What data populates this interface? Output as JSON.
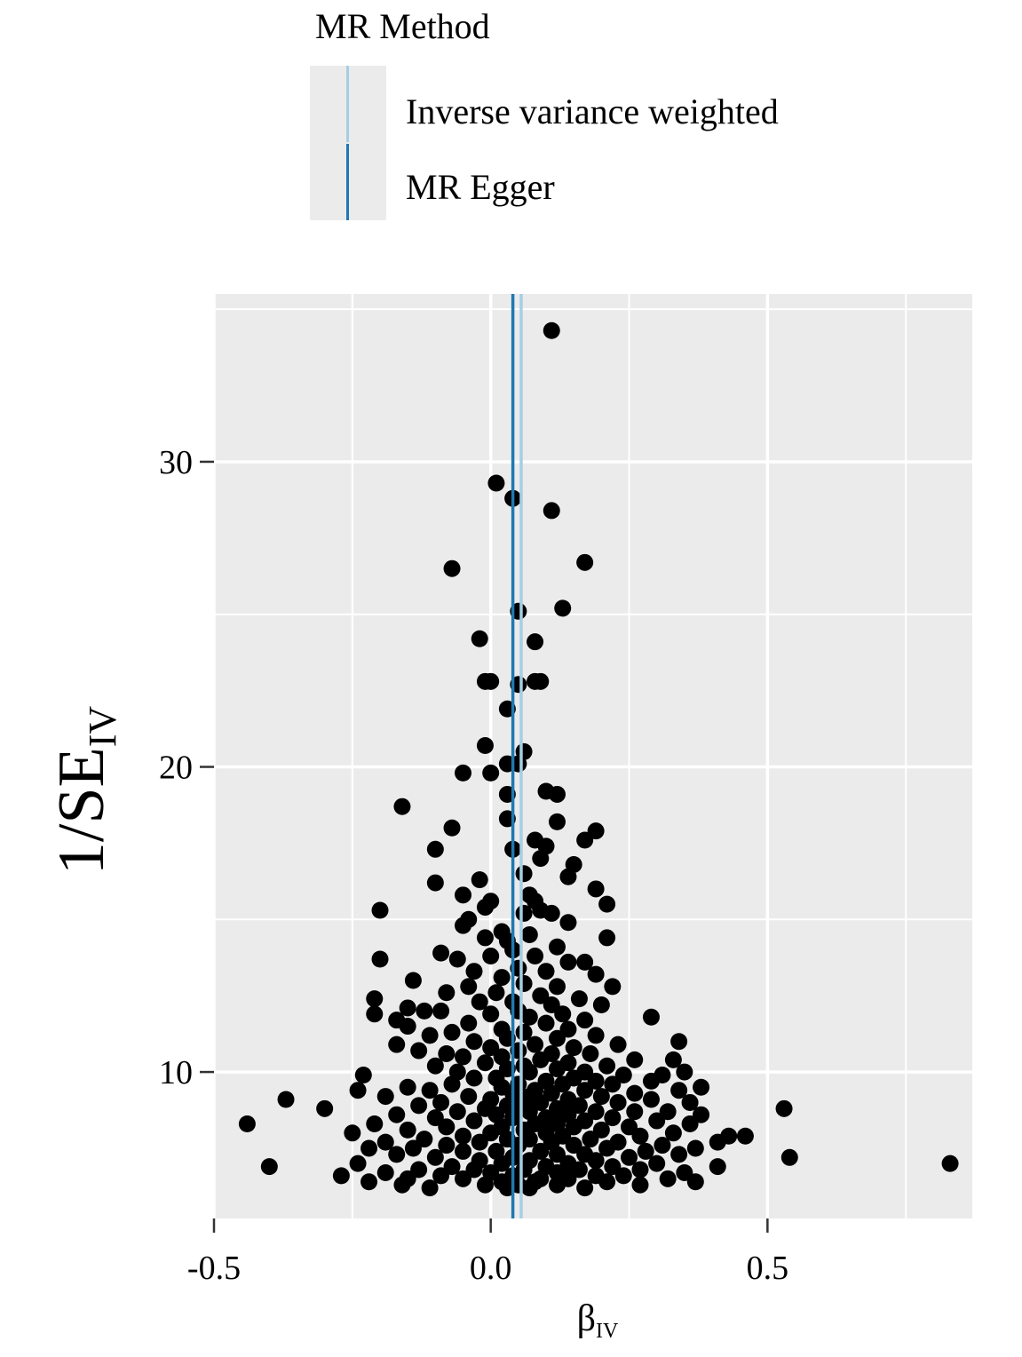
{
  "legend": {
    "title": "MR Method",
    "items": [
      {
        "label": "Inverse variance weighted",
        "color": "#a6cee3"
      },
      {
        "label": "MR Egger",
        "color": "#1f78b4"
      }
    ]
  },
  "chart_data": {
    "type": "scatter",
    "title": "",
    "xlabel": "β",
    "xlabel_sub": "IV",
    "ylabel": "1/SE",
    "ylabel_sub": "IV",
    "xlim": [
      -0.5,
      0.87
    ],
    "ylim": [
      5.2,
      35.5
    ],
    "x_ticks": [
      -0.5,
      0.0,
      0.5
    ],
    "x_tick_labels": [
      "-0.5",
      "0.0",
      "0.5"
    ],
    "y_ticks": [
      10,
      20,
      30
    ],
    "y_tick_labels": [
      "10",
      "20",
      "30"
    ],
    "grid": true,
    "panel_background": "#ebebeb",
    "legend_position": "top",
    "vlines": [
      {
        "method": "Inverse variance weighted",
        "x": 0.055,
        "color": "#a6cee3"
      },
      {
        "method": "MR Egger",
        "x": 0.04,
        "color": "#1f78b4"
      }
    ],
    "points": [
      [
        0.11,
        34.3
      ],
      [
        0.01,
        29.3
      ],
      [
        0.04,
        28.8
      ],
      [
        0.11,
        28.4
      ],
      [
        -0.07,
        26.5
      ],
      [
        0.17,
        26.7
      ],
      [
        0.05,
        25.1
      ],
      [
        0.13,
        25.2
      ],
      [
        -0.02,
        24.2
      ],
      [
        0.08,
        24.1
      ],
      [
        -0.01,
        22.8
      ],
      [
        0.0,
        22.8
      ],
      [
        0.08,
        22.8
      ],
      [
        0.09,
        22.8
      ],
      [
        0.05,
        22.7
      ],
      [
        0.03,
        21.9
      ],
      [
        -0.01,
        20.7
      ],
      [
        0.06,
        20.5
      ],
      [
        0.03,
        20.1
      ],
      [
        0.05,
        20.1
      ],
      [
        -0.05,
        19.8
      ],
      [
        0.0,
        19.8
      ],
      [
        0.1,
        19.2
      ],
      [
        0.12,
        19.1
      ],
      [
        0.03,
        19.1
      ],
      [
        -0.16,
        18.7
      ],
      [
        0.03,
        18.3
      ],
      [
        0.12,
        18.2
      ],
      [
        -0.07,
        18.0
      ],
      [
        0.19,
        17.9
      ],
      [
        0.17,
        17.6
      ],
      [
        0.08,
        17.6
      ],
      [
        0.1,
        17.4
      ],
      [
        0.04,
        17.3
      ],
      [
        -0.1,
        17.3
      ],
      [
        0.09,
        17.0
      ],
      [
        0.15,
        16.8
      ],
      [
        0.06,
        16.5
      ],
      [
        0.14,
        16.4
      ],
      [
        -0.02,
        16.3
      ],
      [
        -0.1,
        16.2
      ],
      [
        0.19,
        16.0
      ],
      [
        0.07,
        15.8
      ],
      [
        -0.05,
        15.8
      ],
      [
        0.08,
        15.6
      ],
      [
        0.0,
        15.6
      ],
      [
        0.21,
        15.5
      ],
      [
        -0.01,
        15.4
      ],
      [
        0.09,
        15.3
      ],
      [
        -0.2,
        15.3
      ],
      [
        0.06,
        15.2
      ],
      [
        0.11,
        15.2
      ],
      [
        -0.04,
        15.0
      ],
      [
        0.14,
        14.9
      ],
      [
        -0.05,
        14.8
      ],
      [
        0.02,
        14.6
      ],
      [
        0.07,
        14.5
      ],
      [
        -0.01,
        14.4
      ],
      [
        0.21,
        14.4
      ],
      [
        0.03,
        14.3
      ],
      [
        0.12,
        14.1
      ],
      [
        0.04,
        14.0
      ],
      [
        -0.09,
        13.9
      ],
      [
        0.08,
        13.8
      ],
      [
        0.0,
        13.8
      ],
      [
        -0.06,
        13.7
      ],
      [
        -0.2,
        13.7
      ],
      [
        0.14,
        13.6
      ],
      [
        0.17,
        13.6
      ],
      [
        0.05,
        13.4
      ],
      [
        -0.03,
        13.3
      ],
      [
        0.1,
        13.3
      ],
      [
        0.19,
        13.2
      ],
      [
        0.02,
        13.1
      ],
      [
        -0.14,
        13.0
      ],
      [
        0.06,
        12.9
      ],
      [
        -0.04,
        12.8
      ],
      [
        0.12,
        12.8
      ],
      [
        0.22,
        12.8
      ],
      [
        0.01,
        12.6
      ],
      [
        -0.08,
        12.6
      ],
      [
        0.09,
        12.5
      ],
      [
        -0.21,
        12.4
      ],
      [
        0.16,
        12.4
      ],
      [
        0.04,
        12.3
      ],
      [
        -0.02,
        12.3
      ],
      [
        0.11,
        12.2
      ],
      [
        0.2,
        12.2
      ],
      [
        -0.15,
        12.1
      ],
      [
        -0.12,
        12.0
      ],
      [
        0.05,
        12.0
      ],
      [
        -0.09,
        12.0
      ],
      [
        0.13,
        11.9
      ],
      [
        -0.21,
        11.9
      ],
      [
        0.0,
        11.9
      ],
      [
        0.07,
        11.8
      ],
      [
        0.29,
        11.8
      ],
      [
        -0.17,
        11.7
      ],
      [
        0.17,
        11.7
      ],
      [
        -0.04,
        11.6
      ],
      [
        0.1,
        11.6
      ],
      [
        -0.15,
        11.5
      ],
      [
        0.02,
        11.4
      ],
      [
        0.14,
        11.4
      ],
      [
        -0.07,
        11.3
      ],
      [
        0.06,
        11.3
      ],
      [
        0.19,
        11.2
      ],
      [
        -0.11,
        11.2
      ],
      [
        0.03,
        11.1
      ],
      [
        0.12,
        11.1
      ],
      [
        -0.03,
        11.0
      ],
      [
        0.34,
        11.0
      ],
      [
        0.23,
        10.9
      ],
      [
        -0.17,
        10.9
      ],
      [
        0.08,
        10.9
      ],
      [
        0.0,
        10.8
      ],
      [
        0.15,
        10.8
      ],
      [
        -0.13,
        10.7
      ],
      [
        0.05,
        10.7
      ],
      [
        -0.08,
        10.6
      ],
      [
        0.11,
        10.6
      ],
      [
        0.18,
        10.6
      ],
      [
        0.02,
        10.5
      ],
      [
        -0.05,
        10.5
      ],
      [
        0.26,
        10.4
      ],
      [
        0.09,
        10.4
      ],
      [
        0.33,
        10.4
      ],
      [
        -0.01,
        10.3
      ],
      [
        0.14,
        10.3
      ],
      [
        0.06,
        10.2
      ],
      [
        0.21,
        10.2
      ],
      [
        -0.1,
        10.2
      ],
      [
        0.03,
        10.1
      ],
      [
        0.12,
        10.1
      ],
      [
        0.17,
        10.0
      ],
      [
        0.35,
        10.0
      ],
      [
        -0.06,
        10.0
      ],
      [
        0.07,
        10.0
      ],
      [
        0.24,
        9.9
      ],
      [
        0.31,
        9.9
      ],
      [
        -0.23,
        9.9
      ],
      [
        0.01,
        9.8
      ],
      [
        0.15,
        9.8
      ],
      [
        -0.03,
        9.8
      ],
      [
        0.1,
        9.7
      ],
      [
        0.19,
        9.7
      ],
      [
        0.29,
        9.7
      ],
      [
        0.05,
        9.6
      ],
      [
        -0.07,
        9.6
      ],
      [
        0.13,
        9.6
      ],
      [
        0.22,
        9.6
      ],
      [
        0.38,
        9.5
      ],
      [
        -0.15,
        9.5
      ],
      [
        0.02,
        9.5
      ],
      [
        0.08,
        9.4
      ],
      [
        0.34,
        9.4
      ],
      [
        -0.11,
        9.4
      ],
      [
        0.17,
        9.4
      ],
      [
        -0.24,
        9.4
      ],
      [
        0.04,
        9.3
      ],
      [
        0.11,
        9.3
      ],
      [
        0.26,
        9.3
      ],
      [
        -0.04,
        9.2
      ],
      [
        0.2,
        9.2
      ],
      [
        -0.19,
        9.2
      ],
      [
        0.07,
        9.2
      ],
      [
        -0.37,
        9.1
      ],
      [
        0.14,
        9.1
      ],
      [
        0.29,
        9.1
      ],
      [
        0.0,
        9.1
      ],
      [
        0.36,
        9.0
      ],
      [
        -0.09,
        9.0
      ],
      [
        0.09,
        9.0
      ],
      [
        0.23,
        9.0
      ],
      [
        0.03,
        8.9
      ],
      [
        0.16,
        8.9
      ],
      [
        -0.13,
        8.9
      ],
      [
        0.05,
        8.9
      ],
      [
        -0.3,
        8.8
      ],
      [
        0.12,
        8.8
      ],
      [
        0.53,
        8.8
      ],
      [
        -0.01,
        8.8
      ],
      [
        0.19,
        8.7
      ],
      [
        0.32,
        8.7
      ],
      [
        -0.06,
        8.7
      ],
      [
        0.07,
        8.7
      ],
      [
        0.26,
        8.7
      ],
      [
        -0.17,
        8.6
      ],
      [
        0.14,
        8.6
      ],
      [
        0.01,
        8.6
      ],
      [
        0.38,
        8.6
      ],
      [
        0.1,
        8.5
      ],
      [
        -0.1,
        8.5
      ],
      [
        0.22,
        8.5
      ],
      [
        0.04,
        8.5
      ],
      [
        0.3,
        8.4
      ],
      [
        -0.03,
        8.4
      ],
      [
        0.17,
        8.4
      ],
      [
        -0.44,
        8.3
      ],
      [
        0.08,
        8.3
      ],
      [
        0.36,
        8.3
      ],
      [
        -0.21,
        8.3
      ],
      [
        0.12,
        8.3
      ],
      [
        0.02,
        8.2
      ],
      [
        0.25,
        8.2
      ],
      [
        -0.08,
        8.2
      ],
      [
        0.15,
        8.2
      ],
      [
        0.06,
        8.1
      ],
      [
        -0.15,
        8.1
      ],
      [
        0.2,
        8.1
      ],
      [
        -0.25,
        8.0
      ],
      [
        0.33,
        8.0
      ],
      [
        0.1,
        8.0
      ],
      [
        0.0,
        8.0
      ],
      [
        0.46,
        7.9
      ],
      [
        -0.05,
        7.9
      ],
      [
        0.13,
        7.9
      ],
      [
        0.27,
        7.9
      ],
      [
        0.43,
        7.9
      ],
      [
        -0.12,
        7.8
      ],
      [
        0.07,
        7.8
      ],
      [
        0.18,
        7.8
      ],
      [
        0.03,
        7.8
      ],
      [
        -0.19,
        7.7
      ],
      [
        0.23,
        7.7
      ],
      [
        0.41,
        7.7
      ],
      [
        -0.02,
        7.7
      ],
      [
        0.11,
        7.7
      ],
      [
        0.31,
        7.6
      ],
      [
        -0.08,
        7.6
      ],
      [
        0.15,
        7.6
      ],
      [
        0.05,
        7.6
      ],
      [
        -0.22,
        7.5
      ],
      [
        0.37,
        7.5
      ],
      [
        0.21,
        7.5
      ],
      [
        -0.14,
        7.5
      ],
      [
        0.09,
        7.4
      ],
      [
        0.01,
        7.4
      ],
      [
        0.28,
        7.4
      ],
      [
        -0.05,
        7.4
      ],
      [
        0.17,
        7.3
      ],
      [
        0.34,
        7.3
      ],
      [
        -0.17,
        7.3
      ],
      [
        0.12,
        7.3
      ],
      [
        0.04,
        7.2
      ],
      [
        0.54,
        7.2
      ],
      [
        -0.1,
        7.2
      ],
      [
        0.25,
        7.2
      ],
      [
        0.07,
        7.1
      ],
      [
        -0.02,
        7.1
      ],
      [
        0.19,
        7.1
      ],
      [
        -0.24,
        7.0
      ],
      [
        0.14,
        7.0
      ],
      [
        0.3,
        7.0
      ],
      [
        0.02,
        7.0
      ],
      [
        0.83,
        7.0
      ],
      [
        -0.07,
        6.9
      ],
      [
        0.1,
        6.9
      ],
      [
        -0.4,
        6.9
      ],
      [
        0.22,
        6.9
      ],
      [
        0.41,
        6.9
      ],
      [
        -0.13,
        6.8
      ],
      [
        0.06,
        6.8
      ],
      [
        0.27,
        6.8
      ],
      [
        -0.03,
        6.8
      ],
      [
        0.16,
        6.8
      ],
      [
        -0.19,
        6.7
      ],
      [
        0.35,
        6.7
      ],
      [
        0.0,
        6.7
      ],
      [
        0.12,
        6.7
      ],
      [
        -0.09,
        6.6
      ],
      [
        0.24,
        6.6
      ],
      [
        0.04,
        6.6
      ],
      [
        -0.27,
        6.6
      ],
      [
        0.19,
        6.6
      ],
      [
        -0.15,
        6.5
      ],
      [
        0.09,
        6.5
      ],
      [
        0.32,
        6.5
      ],
      [
        -0.05,
        6.5
      ],
      [
        0.14,
        6.5
      ],
      [
        -0.22,
        6.4
      ],
      [
        0.02,
        6.4
      ],
      [
        0.37,
        6.4
      ],
      [
        0.08,
        6.4
      ],
      [
        0.21,
        6.4
      ],
      [
        -0.16,
        6.3
      ],
      [
        0.05,
        6.3
      ],
      [
        0.12,
        6.3
      ],
      [
        -0.01,
        6.3
      ],
      [
        0.27,
        6.3
      ],
      [
        -0.11,
        6.2
      ],
      [
        0.17,
        6.2
      ],
      [
        0.03,
        6.2
      ],
      [
        0.07,
        6.2
      ]
    ]
  }
}
